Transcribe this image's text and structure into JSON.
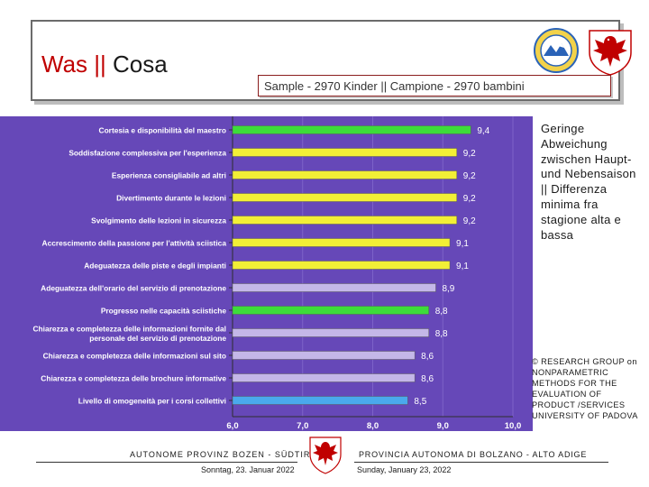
{
  "header": {
    "title_de": "Was",
    "title_sep": " || ",
    "title_it": "Cosa",
    "sample": "Sample - 2970 Kinder || Campione - 2970 bambini"
  },
  "colors": {
    "chart_bg": "#6648b8",
    "green": "#3ddc3a",
    "yellow": "#f2ef36",
    "lavender": "#c4b7e8",
    "blue": "#4aa9ec",
    "title_red": "#c00000"
  },
  "side_note": "Geringe Abweichung zwischen Haupt- und Nebensaison || Differenza minima fra stagione alta e bassa",
  "credit": "© RESEARCH GROUP on NONPARAMETRIC METHODS FOR THE EVALUATION OF PRODUCT /SERVICES UNIVERSITY OF PADOVA",
  "footer": {
    "left_org": "AUTONOME PROVINZ BOZEN - SÜDTIROL",
    "right_org": "PROVINCIA AUTONOMA DI BOLZANO - ALTO ADIGE",
    "left_date": "Sonntag, 23. Januar 2022",
    "right_date": "Sunday, January 23, 2022"
  },
  "chart_data": {
    "type": "bar",
    "orientation": "horizontal",
    "xlim": [
      6.0,
      10.0
    ],
    "xticks": [
      "6,0",
      "7,0",
      "8,0",
      "9,0",
      "10,0"
    ],
    "categories": [
      "Cortesia e disponibilità del maestro",
      "Soddisfazione complessiva per l'esperienza",
      "Esperienza consigliabile ad altri",
      "Divertimento durante le lezioni",
      "Svolgimento delle lezioni in sicurezza",
      "Accrescimento della passione per l'attività sciistica",
      "Adeguatezza delle piste e degli impianti",
      "Adeguatezza dell'orario del servizio di prenotazione",
      "Progresso nelle capacità sciistiche",
      "Chiarezza e completezza delle informazioni fornite dal personale del servizio di prenotazione",
      "Chiarezza e completezza delle informazioni sul sito",
      "Chiarezza e completezza delle brochure informative",
      "Livello di omogeneità per i corsi collettivi"
    ],
    "values": [
      9.4,
      9.2,
      9.2,
      9.2,
      9.2,
      9.1,
      9.1,
      8.9,
      8.8,
      8.8,
      8.6,
      8.6,
      8.5
    ],
    "value_labels": [
      "9,4",
      "9,2",
      "9,2",
      "9,2",
      "9,2",
      "9,1",
      "9,1",
      "8,9",
      "8,8",
      "8,8",
      "8,6",
      "8,6",
      "8,5"
    ],
    "bar_colors": [
      "green",
      "yellow",
      "yellow",
      "yellow",
      "yellow",
      "yellow",
      "yellow",
      "lavender",
      "green",
      "lavender",
      "lavender",
      "lavender",
      "blue"
    ]
  }
}
